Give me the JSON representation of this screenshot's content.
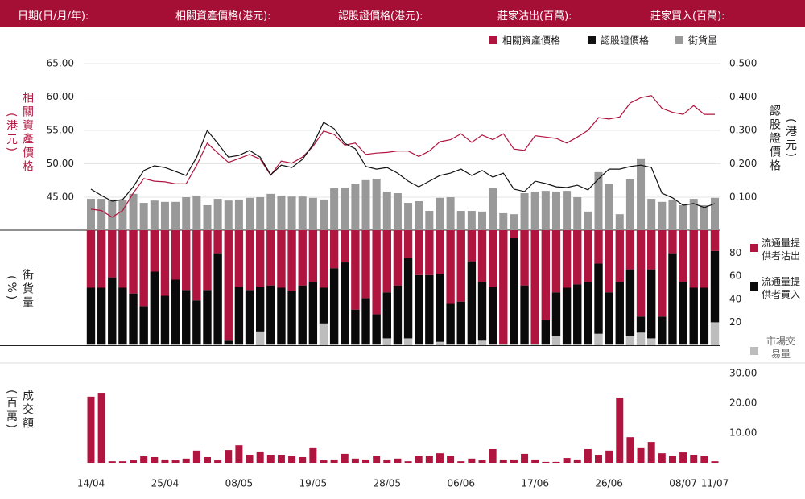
{
  "header": {
    "labels": [
      "日期(日/月/年):",
      "相關資產價格(港元):",
      "認股證價格(港元):",
      "莊家沽出(百萬):",
      "莊家買入(百萬):"
    ]
  },
  "chart_data": [
    {
      "type": "line",
      "ylabel": "相關資產價格(港元)",
      "y2label": "認股證價格(港元)",
      "legend": "top-right",
      "grid": true,
      "ylim": [
        40,
        65
      ],
      "yticks": [
        {
          "value": 45,
          "label": "45.00"
        },
        {
          "value": 50,
          "label": "50.00"
        },
        {
          "value": 55,
          "label": "55.00"
        },
        {
          "value": 60,
          "label": "60.00"
        },
        {
          "value": 65,
          "label": "65.00"
        }
      ],
      "y2lim": [
        0,
        0.5
      ],
      "y2ticks": [
        {
          "value": 0.1,
          "label": "0.100"
        },
        {
          "value": 0.2,
          "label": "0.200"
        },
        {
          "value": 0.3,
          "label": "0.300"
        },
        {
          "value": 0.4,
          "label": "0.400"
        },
        {
          "value": 0.5,
          "label": "0.500"
        }
      ],
      "series": [
        {
          "name": "相關資產價格",
          "type": "line",
          "color": "#b0153f",
          "values": [
            43.2,
            43.0,
            42.0,
            43.0,
            45.6,
            47.8,
            47.4,
            47.3,
            47.0,
            47.0,
            49.8,
            53.1,
            51.6,
            50.2,
            50.8,
            51.4,
            50.7,
            48.3,
            50.4,
            50.1,
            51.0,
            52.6,
            54.9,
            54.4,
            52.8,
            53.1,
            51.4,
            51.6,
            51.7,
            51.9,
            51.9,
            51.1,
            51.9,
            53.3,
            53.6,
            54.5,
            53.2,
            54.3,
            53.6,
            54.5,
            52.2,
            52.0,
            54.2,
            54.0,
            53.8,
            53.1,
            54.0,
            55.0,
            56.9,
            56.7,
            57.0,
            59.1,
            59.9,
            60.2,
            58.3,
            57.7,
            57.4,
            58.7,
            57.4,
            57.4
          ]
        },
        {
          "name": "認股證價格",
          "type": "line",
          "axis": "y2",
          "color": "#111111",
          "values": [
            0.124,
            0.105,
            0.088,
            0.093,
            0.131,
            0.18,
            0.194,
            0.189,
            0.177,
            0.165,
            0.22,
            0.3,
            0.261,
            0.22,
            0.225,
            0.24,
            0.22,
            0.167,
            0.196,
            0.189,
            0.213,
            0.257,
            0.324,
            0.305,
            0.261,
            0.245,
            0.192,
            0.184,
            0.189,
            0.172,
            0.148,
            0.131,
            0.148,
            0.165,
            0.172,
            0.184,
            0.165,
            0.18,
            0.16,
            0.172,
            0.124,
            0.117,
            0.148,
            0.141,
            0.131,
            0.129,
            0.136,
            0.122,
            0.155,
            0.184,
            0.184,
            0.192,
            0.196,
            0.189,
            0.112,
            0.098,
            0.076,
            0.081,
            0.069,
            0.081
          ]
        },
        {
          "name": "街貨量",
          "type": "bar",
          "axis": "y2",
          "color": "#999999",
          "values": [
            0.095,
            0.095,
            0.093,
            0.093,
            0.11,
            0.083,
            0.09,
            0.086,
            0.086,
            0.1,
            0.105,
            0.076,
            0.095,
            0.09,
            0.093,
            0.098,
            0.1,
            0.11,
            0.105,
            0.102,
            0.102,
            0.098,
            0.093,
            0.127,
            0.129,
            0.141,
            0.151,
            0.155,
            0.117,
            0.112,
            0.083,
            0.088,
            0.059,
            0.098,
            0.1,
            0.059,
            0.059,
            0.057,
            0.127,
            0.052,
            0.049,
            0.112,
            0.117,
            0.119,
            0.117,
            0.119,
            0.1,
            0.057,
            0.175,
            0.141,
            0.049,
            0.153,
            0.216,
            0.095,
            0.086,
            0.093,
            0.076,
            0.095,
            0.076,
            0.098
          ]
        }
      ]
    },
    {
      "type": "bar",
      "stacked": true,
      "ylabel": "街貨量(%)",
      "legend": "right",
      "ylim": [
        0,
        100
      ],
      "yticks": [
        20,
        40,
        60,
        80
      ],
      "series": [
        {
          "name": "市場交易量",
          "color": "#bdbdbd",
          "values": [
            1,
            1,
            1,
            1,
            1,
            1,
            1,
            1,
            1,
            1,
            1,
            1,
            1,
            1,
            1,
            1,
            12,
            1,
            1,
            1,
            1,
            1,
            19,
            1,
            1,
            1,
            1,
            1,
            6,
            1,
            6,
            1,
            1,
            3,
            1,
            1,
            1,
            4,
            1,
            1,
            1,
            1,
            1,
            1,
            8,
            1,
            1,
            1,
            10,
            1,
            1,
            8,
            11,
            6,
            1,
            1,
            1,
            1,
            1,
            20
          ]
        },
        {
          "name": "流通量提供者買入",
          "color": "#0a0a0a",
          "values": [
            49,
            49,
            58,
            49,
            44,
            33,
            63,
            42,
            56,
            47,
            38,
            47,
            79,
            3,
            50,
            47,
            39,
            51,
            49,
            46,
            51,
            54,
            31,
            66,
            71,
            30,
            40,
            26,
            40,
            51,
            70,
            60,
            60,
            59,
            35,
            37,
            72,
            51,
            50,
            0,
            92,
            51,
            0,
            21,
            38,
            49,
            52,
            54,
            61,
            45,
            54,
            58,
            14,
            60,
            24,
            79,
            54,
            49,
            49,
            62
          ]
        },
        {
          "name": "流通量提供者沽出",
          "color": "#b0153f",
          "values": [
            50,
            50,
            41,
            50,
            55,
            66,
            36,
            57,
            43,
            52,
            61,
            52,
            20,
            96,
            49,
            52,
            49,
            48,
            50,
            53,
            48,
            45,
            50,
            33,
            28,
            69,
            59,
            73,
            54,
            48,
            24,
            39,
            39,
            38,
            64,
            62,
            27,
            45,
            49,
            99,
            7,
            48,
            99,
            78,
            54,
            50,
            47,
            45,
            29,
            54,
            45,
            34,
            75,
            34,
            75,
            20,
            45,
            50,
            50,
            18
          ]
        }
      ]
    },
    {
      "type": "bar",
      "ylabel": "成交額(百萬)",
      "color": "#b0153f",
      "ylim": [
        0,
        30
      ],
      "yticks": [
        {
          "value": 10,
          "label": "10.00"
        },
        {
          "value": 20,
          "label": "20.00"
        },
        {
          "value": 30,
          "label": "30.00"
        }
      ],
      "categories": [
        "14/04",
        null,
        null,
        null,
        null,
        null,
        null,
        "25/04",
        null,
        null,
        null,
        null,
        null,
        null,
        "08/05",
        null,
        null,
        null,
        null,
        null,
        null,
        "19/05",
        null,
        null,
        null,
        null,
        null,
        null,
        "28/05",
        null,
        null,
        null,
        null,
        null,
        null,
        "06/06",
        null,
        null,
        null,
        null,
        null,
        null,
        "17/06",
        null,
        null,
        null,
        null,
        null,
        null,
        "26/06",
        null,
        null,
        null,
        null,
        null,
        null,
        "08/07",
        null,
        null,
        "11/07"
      ],
      "values": [
        22.2,
        23.5,
        0.5,
        0.5,
        0.8,
        2.4,
        1.9,
        1.1,
        0.8,
        1.4,
        4.1,
        1.9,
        0.8,
        4.3,
        5.9,
        2.7,
        3.8,
        2.7,
        2.7,
        2.2,
        1.9,
        4.9,
        0.8,
        1.1,
        3,
        1.4,
        1.1,
        2.4,
        1.1,
        1.4,
        0.5,
        2.2,
        2.4,
        3.2,
        2.4,
        0.5,
        1.4,
        0.8,
        4.6,
        1.1,
        1.1,
        3,
        1.1,
        0.3,
        0.3,
        1.6,
        1.1,
        4.6,
        2.7,
        4.1,
        21.9,
        8.6,
        4.9,
        7,
        3.2,
        2.4,
        3.5,
        2.7,
        2.2,
        0.5
      ]
    }
  ]
}
